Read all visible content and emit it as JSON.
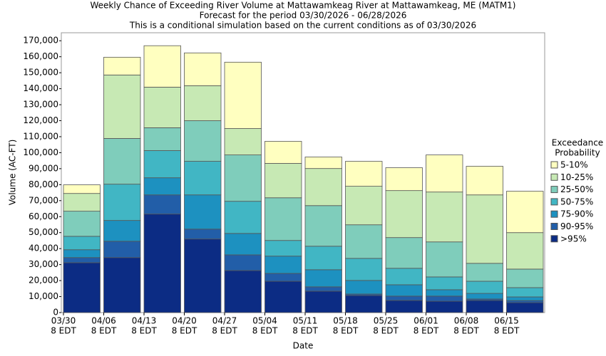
{
  "chart_data": {
    "type": "stacked_bar",
    "title": "Weekly Chance of Exceeding River Volume at Mattawamkeag River at Mattawamkeag, ME (MATM1)",
    "subtitle": "Forecast for the period 03/30/2026 - 06/28/2026",
    "note": "This is a conditional simulation based on the current conditions as of 03/30/2026",
    "xlabel": "Date",
    "ylabel": "Volume (AC-FT)",
    "legend_title": [
      "Exceedance",
      "Probability"
    ],
    "legend_position": "right",
    "categories": [
      "03/30",
      "04/06",
      "04/13",
      "04/20",
      "04/27",
      "05/04",
      "05/11",
      "05/18",
      "05/25",
      "06/01",
      "06/08",
      "06/15"
    ],
    "category_time": "8 EDT",
    "series": [
      {
        "name": ">95%",
        "color": "#0c2c84",
        "values": [
          31200,
          34400,
          61600,
          46000,
          26300,
          19600,
          13400,
          10700,
          7600,
          7100,
          7600,
          6200
        ]
      },
      {
        "name": "90-95%",
        "color": "#225ea8",
        "values": [
          3200,
          10200,
          12000,
          6200,
          9800,
          4900,
          2700,
          900,
          2700,
          3200,
          900,
          1300
        ]
      },
      {
        "name": "75-90%",
        "color": "#1d91c0",
        "values": [
          4900,
          13000,
          10700,
          21400,
          13400,
          10800,
          10700,
          8500,
          7100,
          4000,
          3500,
          2300
        ]
      },
      {
        "name": "50-75%",
        "color": "#41b6c4",
        "values": [
          8400,
          22700,
          17000,
          21000,
          20100,
          9800,
          14700,
          13800,
          10300,
          8000,
          7600,
          5800
        ]
      },
      {
        "name": "25-50%",
        "color": "#7fcdbb",
        "values": [
          15700,
          28600,
          14300,
          25400,
          29000,
          26700,
          25400,
          21000,
          19200,
          21900,
          11200,
          11600
        ]
      },
      {
        "name": "10-25%",
        "color": "#c7e9b4",
        "values": [
          11100,
          39700,
          25400,
          21900,
          16500,
          21500,
          23200,
          24100,
          29400,
          31200,
          42800,
          22800
        ]
      },
      {
        "name": "5-10%",
        "color": "#ffffc0",
        "values": [
          5400,
          11100,
          25900,
          20500,
          41500,
          13800,
          7200,
          15600,
          14300,
          23200,
          17900,
          25900
        ]
      }
    ],
    "ylim": [
      0,
      175000
    ],
    "yticks": [
      0,
      {
        "value": 10000,
        "label": "10,000"
      },
      {
        "value": 20000,
        "label": "20,000"
      },
      {
        "value": 30000,
        "label": "30,000"
      },
      {
        "value": 40000,
        "label": "40,000"
      },
      {
        "value": 50000,
        "label": "50,000"
      },
      {
        "value": 60000,
        "label": "60,000"
      },
      {
        "value": 70000,
        "label": "70,000"
      },
      {
        "value": 80000,
        "label": "80,000"
      },
      {
        "value": 90000,
        "label": "90,000"
      },
      {
        "value": 100000,
        "label": "100,000"
      },
      {
        "value": 110000,
        "label": "110,000"
      },
      {
        "value": 120000,
        "label": "120,000"
      },
      {
        "value": 130000,
        "label": "130,000"
      },
      {
        "value": 140000,
        "label": "140,000"
      },
      {
        "value": 150000,
        "label": "150,000"
      },
      {
        "value": 160000,
        "label": "160,000"
      },
      {
        "value": 170000,
        "label": "170,000"
      }
    ],
    "grid": false
  }
}
